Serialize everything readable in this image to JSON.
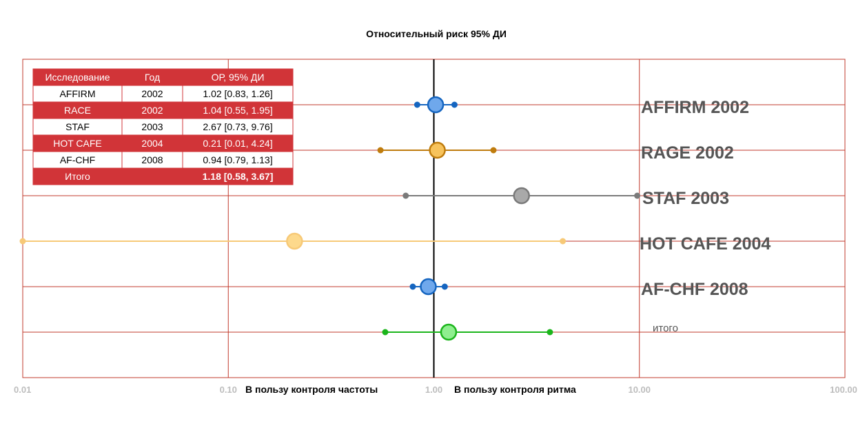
{
  "colors": {
    "frame": "#c0392b",
    "zero_line": "#000000",
    "table_header_bg": "#d13438",
    "table_header_text": "#ffffff",
    "table_odd_bg": "#ffffff",
    "table_odd_text": "#000000",
    "table_even_bg": "#d13438",
    "table_even_text": "#ffffff"
  },
  "chart_data": {
    "type": "forest",
    "title": "Относительный риск  95%  ДИ",
    "xscale": "log",
    "xlim": [
      0.01,
      100
    ],
    "xticks": [
      {
        "value": 0.01,
        "label": "0.01"
      },
      {
        "value": 0.1,
        "label": "0.10"
      },
      {
        "value": 1,
        "label": "1.00"
      },
      {
        "value": 10,
        "label": "10.00"
      },
      {
        "value": 100,
        "label": "100.00"
      }
    ],
    "reference_line": 1,
    "favor_left": "В пользу контроля частоты",
    "favor_right": "В пользу контроля ритма",
    "rows": [
      {
        "label": "AFFIRM 2002",
        "rr": 1.02,
        "lo": 0.83,
        "hi": 1.26,
        "color": "#1565c0",
        "fill": "#6fa8ec",
        "big": true
      },
      {
        "label": "RAGE 2002",
        "rr": 1.04,
        "lo": 0.55,
        "hi": 1.95,
        "color": "#bf7c0d",
        "fill": "#f7c35c",
        "big": true
      },
      {
        "label": "STAF 2003",
        "rr": 2.67,
        "lo": 0.73,
        "hi": 9.76,
        "color": "#7a7a7a",
        "fill": "#a9a9a9",
        "big": true
      },
      {
        "label": "HOT CAFE 2004",
        "rr": 0.21,
        "lo": 0.01,
        "hi": 4.24,
        "color": "#f7c977",
        "fill": "#fdd98c",
        "big": true
      },
      {
        "label": "AF-CHF 2008",
        "rr": 0.94,
        "lo": 0.79,
        "hi": 1.13,
        "color": "#1565c0",
        "fill": "#6fa8ec",
        "big": true
      },
      {
        "label": "итого",
        "rr": 1.18,
        "lo": 0.58,
        "hi": 3.67,
        "color": "#1bb51b",
        "fill": "#8fef8f",
        "big": false
      }
    ],
    "table": {
      "headers": [
        "Исследование",
        "Год",
        "ОР, 95% ДИ"
      ],
      "rows": [
        [
          "AFFIRM",
          "2002",
          "1.02 [0.83, 1.26]"
        ],
        [
          "RACE",
          "2002",
          "1.04 [0.55, 1.95]"
        ],
        [
          "STAF",
          "2003",
          "2.67 [0.73, 9.76]"
        ],
        [
          "HOT CAFE",
          "2004",
          "0.21 [0.01, 4.24]"
        ],
        [
          "AF-CHF",
          "2008",
          "0.94 [0.79, 1.13]"
        ]
      ],
      "total": {
        "label": "Итого",
        "value": "1.18 [0.58, 3.67]"
      }
    }
  }
}
